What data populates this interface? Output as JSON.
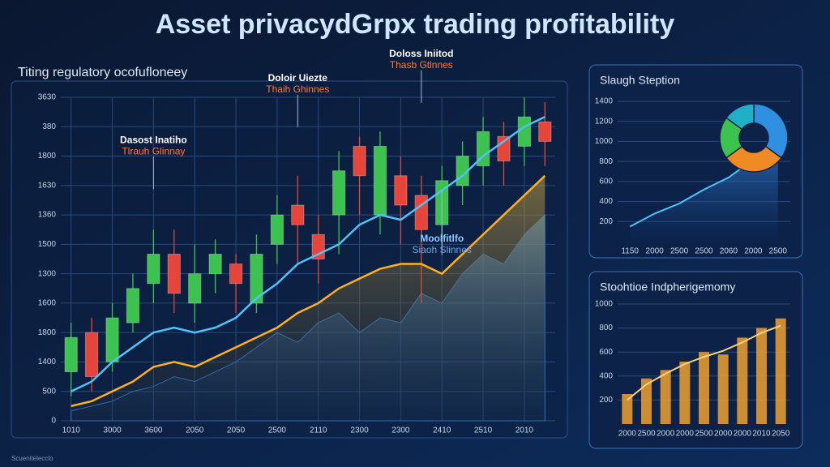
{
  "title": "Asset privacydGrpx trading profitability",
  "footer": "Scuenitelecclo",
  "chart_data": [
    {
      "type": "candlestick",
      "subtitle": "Titing regulatory ocofufloneey",
      "categories": [
        "1010",
        null,
        "3000",
        null,
        "3600",
        null,
        "2050",
        null,
        "2050",
        null,
        "2500",
        null,
        "2110",
        null,
        "2300",
        null,
        "2300",
        null,
        "2410",
        null,
        "2510",
        null,
        "2010",
        null
      ],
      "candles": {
        "open": [
          500,
          900,
          600,
          1000,
          1400,
          1700,
          1200,
          1500,
          1600,
          1200,
          1800,
          2200,
          1900,
          2100,
          2800,
          2100,
          2500,
          2300,
          2000,
          2400,
          2600,
          2900,
          2800,
          3050
        ],
        "close": [
          850,
          450,
          1050,
          1350,
          1700,
          1300,
          1500,
          1700,
          1400,
          1700,
          2100,
          2000,
          1650,
          2550,
          2500,
          2800,
          2200,
          1950,
          2450,
          2700,
          2950,
          2650,
          3100,
          2850
        ],
        "high": [
          1000,
          1050,
          1200,
          1500,
          1950,
          1950,
          1800,
          1850,
          1700,
          1900,
          2300,
          2500,
          2100,
          2750,
          2900,
          2950,
          2700,
          2500,
          2600,
          2850,
          3100,
          3050,
          3300,
          3250
        ],
        "low": [
          250,
          300,
          500,
          900,
          1200,
          1100,
          1000,
          1300,
          1100,
          1100,
          1600,
          1600,
          1400,
          1700,
          2100,
          1900,
          1800,
          1200,
          1800,
          2200,
          2400,
          2400,
          2600,
          2600
        ],
        "up_color": "#3cc24f",
        "down_color": "#e8453a"
      },
      "series": [
        {
          "name": "Blue trend",
          "color": "#4fc3f7",
          "values": [
            300,
            400,
            600,
            750,
            900,
            950,
            900,
            950,
            1050,
            1250,
            1400,
            1600,
            1700,
            1800,
            2000,
            2100,
            2050,
            2200,
            2350,
            2500,
            2700,
            2850,
            3000,
            3100
          ]
        },
        {
          "name": "Orange trend",
          "color": "#ffb020",
          "values": [
            150,
            200,
            300,
            400,
            550,
            600,
            550,
            650,
            750,
            850,
            950,
            1100,
            1200,
            1350,
            1450,
            1550,
            1600,
            1600,
            1500,
            1700,
            1900,
            2100,
            2300,
            2500
          ]
        },
        {
          "name": "Volume area",
          "color": "#2f6fc4",
          "values": [
            100,
            150,
            200,
            300,
            350,
            450,
            400,
            500,
            600,
            750,
            900,
            800,
            1000,
            1100,
            900,
            1050,
            1000,
            1300,
            1200,
            1500,
            1700,
            1600,
            1900,
            2100
          ]
        }
      ],
      "annotations": [
        {
          "title": "Dasost Inatiho",
          "subtitle": "Tlrauh Glinnay",
          "at": 4
        },
        {
          "title": "Doloir Uiezte",
          "subtitle": "Thaih Ghinnes",
          "at": 11
        },
        {
          "title": "Doloss Iniitod",
          "subtitle": "Thasb Gtlnnes",
          "at": 17
        },
        {
          "title": "Moolfitlfo",
          "subtitle": "Siaoh Slinnes",
          "at": 18
        }
      ],
      "ylim": [
        0,
        3300
      ],
      "yticks": [
        0,
        {
          "value": 300,
          "label": "500"
        },
        {
          "value": 600,
          "label": "1400"
        },
        {
          "value": 900,
          "label": "1800"
        },
        {
          "value": 1200,
          "label": "1600"
        },
        {
          "value": 1500,
          "label": "1300"
        },
        {
          "value": 1800,
          "label": "1500"
        },
        {
          "value": 2100,
          "label": "1360"
        },
        {
          "value": 2400,
          "label": "1630"
        },
        {
          "value": 2700,
          "label": "1800"
        },
        {
          "value": 3000,
          "label": "380"
        },
        {
          "value": 3300,
          "label": "3630"
        }
      ],
      "grid": true
    },
    {
      "type": "line",
      "title": "Slaugh Steption",
      "categories": [
        "1150",
        "2000",
        "2500",
        "2500",
        "2060",
        "2000",
        "2500"
      ],
      "series": [
        {
          "name": "Trend",
          "color": "#4fc3f7",
          "values": [
            150,
            280,
            380,
            520,
            640,
            820,
            1000
          ]
        }
      ],
      "ylim": [
        0,
        1400
      ],
      "yticks": [
        200,
        400,
        600,
        800,
        1000,
        1200,
        1400
      ],
      "grid": true
    },
    {
      "type": "pie",
      "values": [
        35,
        30,
        20,
        15
      ],
      "colors": [
        "#2f8fe0",
        "#f08a24",
        "#3cc24f",
        "#1fb0c8"
      ]
    },
    {
      "type": "bar",
      "title": "Stoohtioe Indpherigemomy",
      "categories": [
        "2000",
        "2500",
        "2000",
        "2000",
        "2500",
        "2000",
        "2000",
        "2010",
        "2050"
      ],
      "series": [
        {
          "name": "Bars",
          "color": "#f0a030",
          "values": [
            250,
            380,
            450,
            520,
            600,
            580,
            720,
            800,
            880
          ]
        },
        {
          "name": "Line",
          "color": "#ffd27a",
          "values": [
            200,
            330,
            420,
            500,
            560,
            610,
            680,
            760,
            820
          ]
        }
      ],
      "ylim": [
        0,
        1000
      ],
      "yticks": [
        200,
        400,
        600,
        800,
        1000
      ],
      "grid": true
    }
  ]
}
